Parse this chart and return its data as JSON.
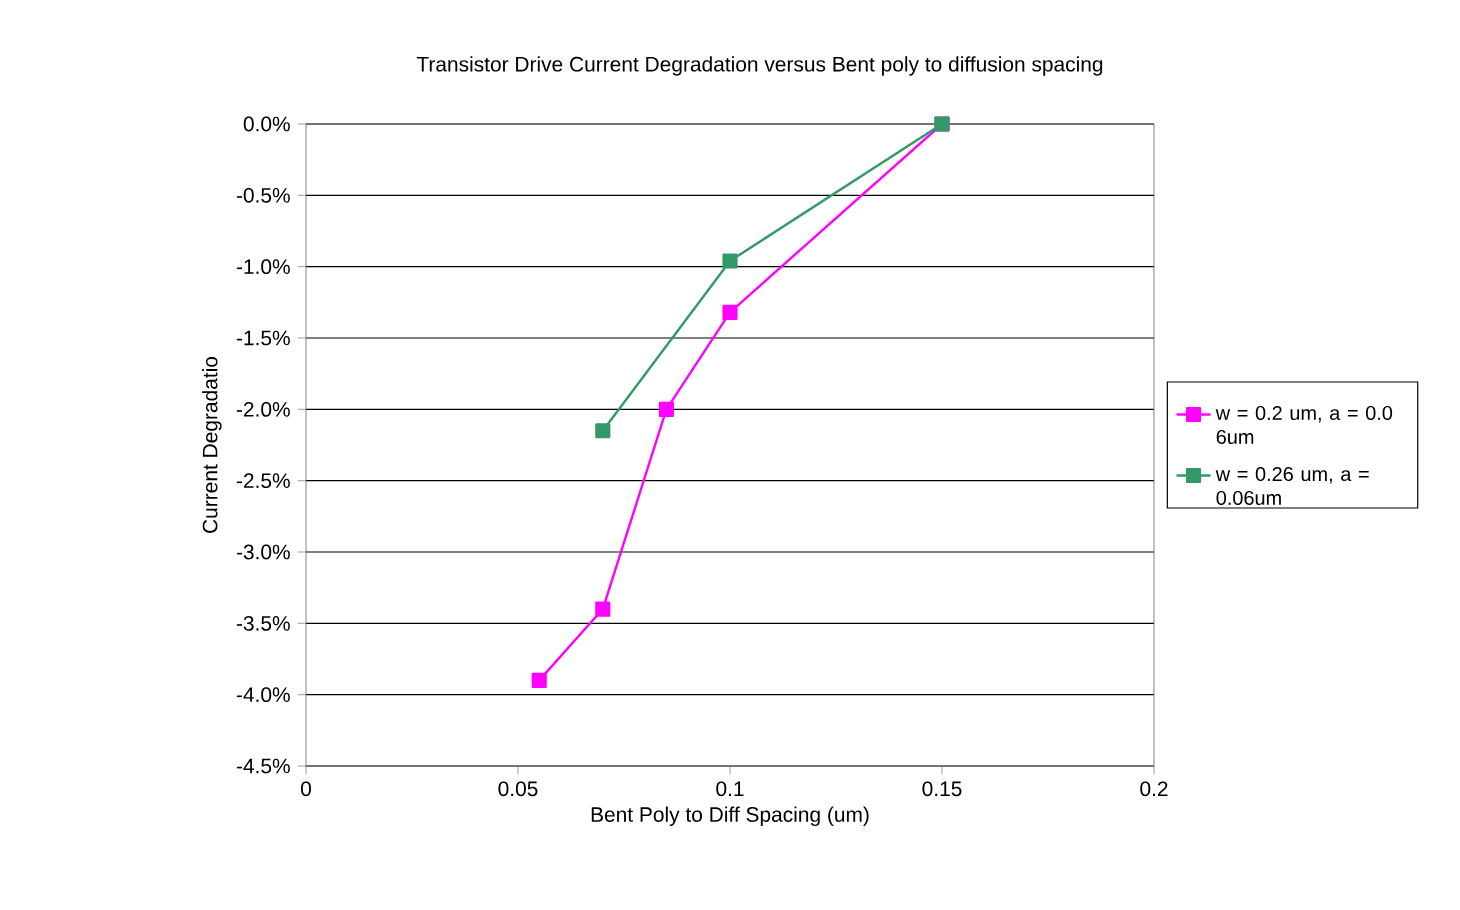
{
  "chart_data": {
    "type": "line",
    "title": "Transistor Drive Current Degradation versus Bent poly to diffusion spacing",
    "xlabel": "Bent Poly to Diff Spacing (um)",
    "ylabel": "Current Degradatio",
    "series": [
      {
        "name": "w = 0.2 um,   a = 0.0 6um",
        "color": "#ff00ff",
        "x": [
          0.055,
          0.07,
          0.085,
          0.1,
          0.15
        ],
        "values": [
          -3.9,
          -3.4,
          -2.0,
          -1.32,
          0.0
        ]
      },
      {
        "name": "w = 0.26 um, a = 0.06um",
        "color": "#339966",
        "x": [
          0.07,
          0.1,
          0.15
        ],
        "values": [
          -2.15,
          -0.96,
          0.0
        ]
      }
    ],
    "xlim": [
      0,
      0.2
    ],
    "xticks": [
      0,
      0.05,
      0.1,
      0.15,
      0.2
    ],
    "ylim": [
      -4.5,
      0
    ],
    "yticks": [
      {
        "value": 0,
        "label": "0.0%"
      },
      {
        "value": -0.5,
        "label": "-0.5%"
      },
      {
        "value": -1,
        "label": "-1.0%"
      },
      {
        "value": -1.5,
        "label": "-1.5%"
      },
      {
        "value": -2,
        "label": "-2.0%"
      },
      {
        "value": -2.5,
        "label": "-2.5%"
      },
      {
        "value": -3,
        "label": "-3.0%"
      },
      {
        "value": -3.5,
        "label": "-3.5%"
      },
      {
        "value": -4,
        "label": "-4.0%"
      },
      {
        "value": -4.5,
        "label": "-4.5%"
      }
    ],
    "grid": "y",
    "legend": "right",
    "marker": "square",
    "line_style": "solid"
  }
}
